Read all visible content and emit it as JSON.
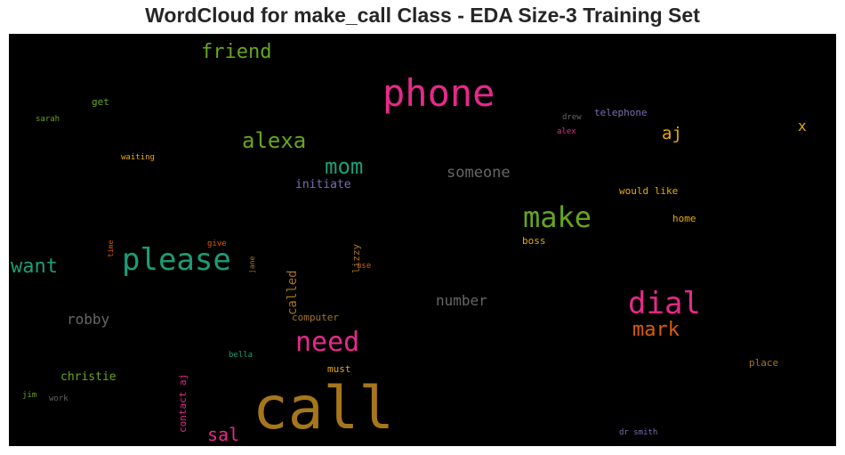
{
  "title": "WordCloud for make_call Class - EDA Size-3 Training Set",
  "colors": {
    "background": "#000000",
    "title": "#262626"
  },
  "words": [
    {
      "text": "call",
      "color": "#a6761d"
    },
    {
      "text": "phone",
      "color": "#e7298a"
    },
    {
      "text": "please",
      "color": "#1b9e77"
    },
    {
      "text": "make",
      "color": "#66a61e"
    },
    {
      "text": "dial",
      "color": "#e7298a"
    },
    {
      "text": "need",
      "color": "#e7298a"
    },
    {
      "text": "alexa",
      "color": "#66a61e"
    },
    {
      "text": "mom",
      "color": "#1b9e77"
    },
    {
      "text": "friend",
      "color": "#66a61e"
    },
    {
      "text": "want",
      "color": "#1b9e77"
    },
    {
      "text": "mark",
      "color": "#d95f02"
    },
    {
      "text": "aj",
      "color": "#e6ab02"
    },
    {
      "text": "sal",
      "color": "#e7298a"
    },
    {
      "text": "someone",
      "color": "#666666"
    },
    {
      "text": "number",
      "color": "#666666"
    },
    {
      "text": "robby",
      "color": "#666666"
    },
    {
      "text": "christie",
      "color": "#66a61e"
    },
    {
      "text": "initiate",
      "color": "#7570b3"
    },
    {
      "text": "telephone",
      "color": "#7570b3"
    },
    {
      "text": "x",
      "color": "#e6ab02"
    },
    {
      "text": "would like",
      "color": "#e6ab02"
    },
    {
      "text": "home",
      "color": "#e6ab02"
    },
    {
      "text": "boss",
      "color": "#e6ab02"
    },
    {
      "text": "place",
      "color": "#a6761d"
    },
    {
      "text": "must",
      "color": "#e6ab02"
    },
    {
      "text": "computer",
      "color": "#a6761d"
    },
    {
      "text": "called",
      "color": "#a6761d"
    },
    {
      "text": "lizzy",
      "color": "#a6761d"
    },
    {
      "text": "contact aj",
      "color": "#e7298a"
    },
    {
      "text": "get",
      "color": "#66a61e"
    },
    {
      "text": "sarah",
      "color": "#66a61e"
    },
    {
      "text": "waiting",
      "color": "#e6ab02"
    },
    {
      "text": "drew",
      "color": "#666666"
    },
    {
      "text": "alex",
      "color": "#e7298a"
    },
    {
      "text": "time",
      "color": "#d95f02"
    },
    {
      "text": "give",
      "color": "#d95f02"
    },
    {
      "text": "jane",
      "color": "#a6761d"
    },
    {
      "text": "use",
      "color": "#d95f02"
    },
    {
      "text": "bella",
      "color": "#1b9e77"
    },
    {
      "text": "jim",
      "color": "#66a61e"
    },
    {
      "text": "work",
      "color": "#666666"
    },
    {
      "text": "dr smith",
      "color": "#7570b3"
    }
  ]
}
